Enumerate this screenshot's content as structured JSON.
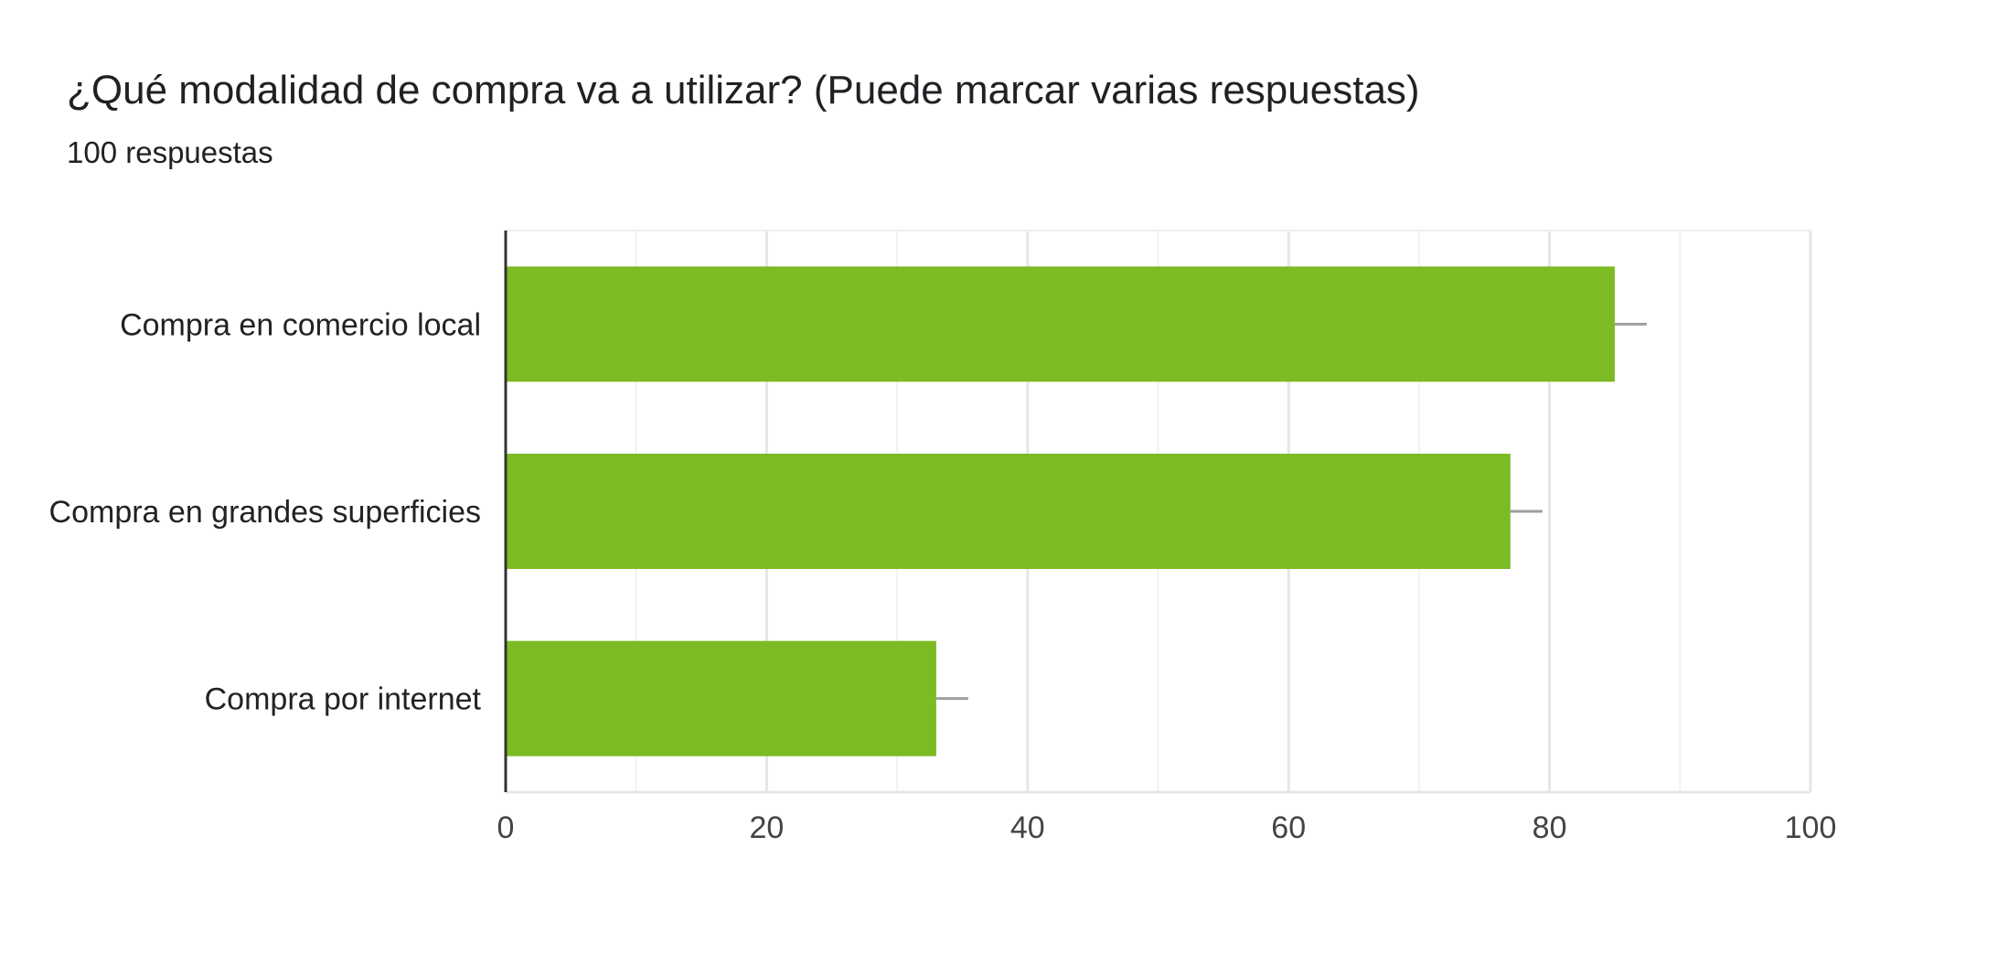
{
  "header": {
    "title": "¿Qué modalidad de compra va a utilizar? (Puede marcar varias respuestas)",
    "responses": "100 respuestas"
  },
  "chart_data": {
    "type": "bar",
    "orientation": "horizontal",
    "categories": [
      "Compra en comercio local",
      "Compra en grandes superficies",
      "Compra por internet"
    ],
    "values": [
      85,
      77,
      33
    ],
    "xlim": [
      0,
      100
    ],
    "xticks": [
      0,
      20,
      40,
      60,
      80,
      100
    ],
    "minor_gridlines_every": 10,
    "grid": true,
    "bar_color": "#7cbb23",
    "error_whisker_color": "#9e9e9e",
    "gridline_color": "#ebebeb",
    "axis_color": "#333333",
    "legend": "none"
  }
}
